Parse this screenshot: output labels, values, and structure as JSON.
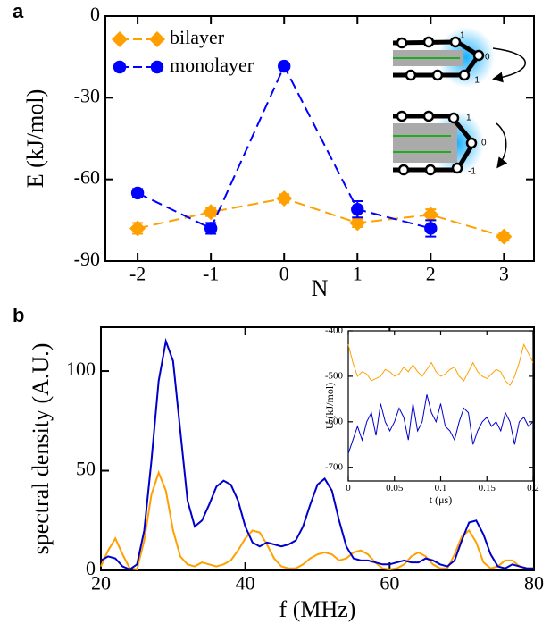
{
  "chart_data": [
    {
      "type": "line",
      "panel": "a",
      "xlabel": "N",
      "ylabel": "E (kJ/mol)",
      "x": [
        -2,
        -1,
        0,
        1,
        2,
        3
      ],
      "xlim": [
        -2.44,
        3.41
      ],
      "xticks": [
        -2,
        -1,
        0,
        1,
        2,
        3
      ],
      "ylim": [
        -90,
        0
      ],
      "yticks": [
        0,
        -30,
        -60,
        -90
      ],
      "legend": "upper left",
      "annotations": [
        "1",
        "0",
        "-1",
        "1",
        "0",
        "-1"
      ],
      "series": [
        {
          "name": "bilayer",
          "color": "#ffa000",
          "marker": "diamond",
          "dashed": true,
          "values": [
            -78,
            -72,
            -67,
            -76,
            -73,
            -81
          ],
          "errors": [
            2,
            1.5,
            1.5,
            1.5,
            2,
            1.5
          ]
        },
        {
          "name": "monolayer",
          "color": "#0000ff",
          "marker": "circle",
          "dashed": true,
          "values": [
            -65,
            -78,
            -18.4,
            -71,
            -78,
            null
          ],
          "errors": [
            1.5,
            2,
            1,
            3,
            3,
            null
          ]
        }
      ]
    },
    {
      "type": "line",
      "panel": "b",
      "xlabel": "f (MHz)",
      "ylabel": "spectral density (A.U.)",
      "x": [
        20,
        21,
        22,
        23,
        24,
        25,
        26,
        27,
        28,
        29,
        30,
        31,
        32,
        33,
        34,
        35,
        36,
        37,
        38,
        39,
        40,
        41,
        42,
        43,
        44,
        45,
        46,
        47,
        48,
        49,
        50,
        51,
        52,
        53,
        54,
        55,
        56,
        57,
        58,
        59,
        60,
        61,
        62,
        63,
        64,
        65,
        66,
        67,
        68,
        69,
        70,
        71,
        72,
        73,
        74,
        75,
        76,
        77,
        78,
        79,
        80
      ],
      "xlim": [
        20,
        80
      ],
      "xticks": [
        20,
        40,
        60,
        80
      ],
      "ylim": [
        0,
        122
      ],
      "yticks": [
        0,
        50,
        100
      ],
      "series": [
        {
          "name": null,
          "color": "#ffa000",
          "values": [
            2,
            10,
            16,
            8,
            1,
            0.5,
            15,
            38,
            49,
            40,
            20,
            7,
            3,
            2,
            4,
            3,
            2,
            3,
            5,
            10,
            16,
            20,
            19,
            13,
            6,
            2,
            1,
            1,
            3,
            6,
            8,
            9,
            8,
            5,
            6,
            9,
            10,
            8,
            4,
            1,
            0.5,
            1,
            3,
            7,
            9,
            7,
            3,
            1,
            1,
            8,
            17,
            20,
            14,
            4,
            1,
            2,
            5,
            5,
            2,
            1,
            1
          ]
        },
        {
          "name": null,
          "color": "#0000cc",
          "values": [
            5,
            7,
            6,
            2,
            0.5,
            3,
            20,
            55,
            95,
            115,
            105,
            70,
            35,
            22,
            25,
            33,
            42,
            45,
            43,
            35,
            22,
            14,
            12,
            14,
            13,
            12,
            13,
            15,
            22,
            33,
            43,
            46,
            40,
            25,
            12,
            6,
            5,
            5,
            4,
            3,
            3,
            4,
            5,
            4,
            4,
            6,
            5,
            3,
            2,
            5,
            15,
            24,
            25,
            18,
            8,
            2,
            1,
            3,
            2,
            1,
            1
          ]
        }
      ]
    },
    {
      "type": "line",
      "xlabel": "t (μs)",
      "ylabel": "U (kJ/mol)",
      "x": [
        0,
        0.005,
        0.01,
        0.015,
        0.02,
        0.025,
        0.03,
        0.035,
        0.04,
        0.045,
        0.05,
        0.055,
        0.06,
        0.065,
        0.07,
        0.075,
        0.08,
        0.085,
        0.09,
        0.095,
        0.1,
        0.105,
        0.11,
        0.115,
        0.12,
        0.125,
        0.13,
        0.135,
        0.14,
        0.145,
        0.15,
        0.155,
        0.16,
        0.165,
        0.17,
        0.175,
        0.18,
        0.185,
        0.19,
        0.195,
        0.2
      ],
      "xlim": [
        0,
        0.2
      ],
      "xticks": [
        0,
        0.05,
        0.1,
        0.15,
        0.2
      ],
      "ylim": [
        -730,
        -400
      ],
      "yticks": [
        -400,
        -500,
        -600,
        -700
      ],
      "series": [
        {
          "name": null,
          "color": "#ffa000",
          "values": [
            -430,
            -470,
            -500,
            -490,
            -495,
            -510,
            -505,
            -500,
            -485,
            -490,
            -500,
            -495,
            -480,
            -490,
            -475,
            -490,
            -500,
            -485,
            -470,
            -490,
            -500,
            -495,
            -485,
            -480,
            -500,
            -510,
            -490,
            -470,
            -490,
            -500,
            -505,
            -495,
            -485,
            -490,
            -510,
            -520,
            -500,
            -470,
            -430,
            -450,
            -470
          ]
        },
        {
          "name": null,
          "color": "#0000cc",
          "values": [
            -670,
            -640,
            -610,
            -640,
            -600,
            -580,
            -630,
            -560,
            -600,
            -620,
            -600,
            -570,
            -590,
            -640,
            -560,
            -620,
            -600,
            -540,
            -580,
            -600,
            -560,
            -610,
            -620,
            -640,
            -600,
            -570,
            -580,
            -650,
            -620,
            -600,
            -590,
            -610,
            -600,
            -620,
            -580,
            -600,
            -650,
            -600,
            -590,
            -610,
            -600
          ]
        }
      ]
    }
  ]
}
